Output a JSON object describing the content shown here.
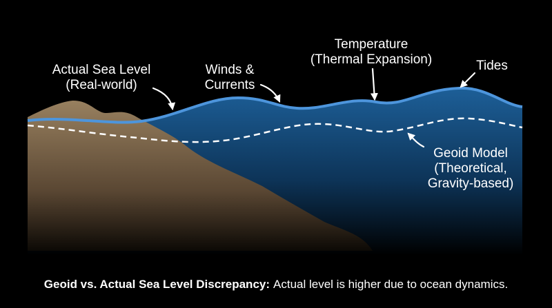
{
  "labels": [
    {
      "lines": [
        "Actual Sea Level",
        "(Real-world)"
      ]
    },
    {
      "lines": [
        "Winds &",
        "Currents"
      ]
    },
    {
      "lines": [
        "Temperature",
        "(Thermal Expansion)"
      ]
    },
    {
      "lines": [
        "Tides"
      ]
    },
    {
      "lines": [
        "Geoid Model",
        "(Theoretical,",
        "Gravity-based)"
      ]
    }
  ],
  "caption": {
    "bold": "Geoid vs. Actual Sea Level Discrepancy:",
    "text": "Actual level is higher due to ocean dynamics."
  }
}
